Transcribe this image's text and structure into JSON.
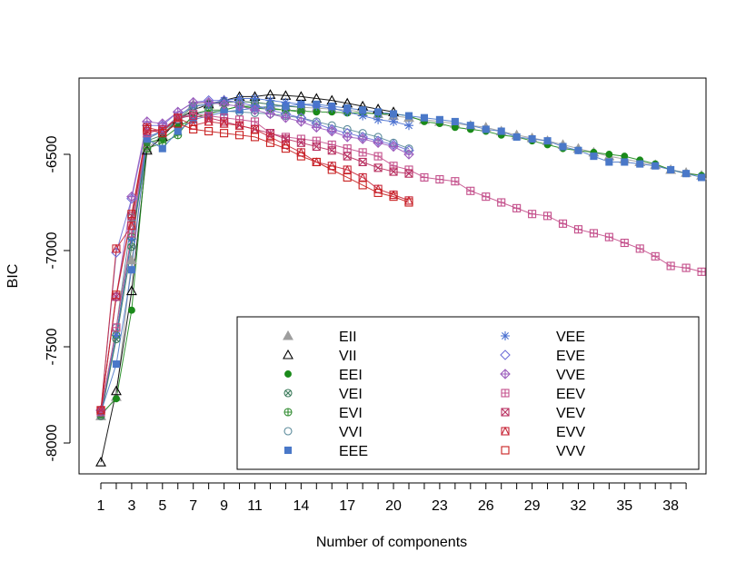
{
  "chart_data": {
    "type": "line",
    "title": "",
    "xlabel": "Number of components",
    "ylabel": "BIC",
    "xlim": [
      0,
      41.5
    ],
    "ylim": [
      -8120,
      -6120
    ],
    "xticks": [
      1,
      3,
      5,
      7,
      9,
      11,
      14,
      17,
      20,
      23,
      26,
      29,
      32,
      35,
      38
    ],
    "yticks": [
      -8000,
      -7500,
      -7000,
      -6500
    ],
    "grid": false,
    "legend": {
      "placement": "bottom-right",
      "columns": 2
    },
    "series": [
      {
        "name": "EII",
        "color": "#9e9e9e",
        "marker": "triangle-filled",
        "x": [
          1,
          2,
          3,
          4,
          5,
          6,
          7,
          8,
          9,
          10,
          11,
          12,
          13,
          14,
          15,
          16,
          17,
          18,
          19,
          20,
          21,
          22,
          23,
          24,
          25,
          26,
          27,
          28,
          29,
          30,
          31,
          32,
          33,
          34,
          35,
          36,
          37,
          38,
          39,
          40
        ],
        "values": [
          -7860,
          -7760,
          -7050,
          -6470,
          -6400,
          -6310,
          -6240,
          -6230,
          -6230,
          -6225,
          -6230,
          -6240,
          -6250,
          -6255,
          -6260,
          -6265,
          -6270,
          -6280,
          -6290,
          -6300,
          -6310,
          -6320,
          -6330,
          -6340,
          -6350,
          -6360,
          -6380,
          -6400,
          -6415,
          -6430,
          -6450,
          -6470,
          -6490,
          -6510,
          -6525,
          -6540,
          -6555,
          -6580,
          -6595,
          -6610
        ]
      },
      {
        "name": "VII",
        "color": "#000000",
        "marker": "triangle-open",
        "x": [
          1,
          2,
          3,
          4,
          5,
          6,
          7,
          8,
          9,
          10,
          11,
          12,
          13,
          14,
          15,
          16,
          17,
          18,
          19,
          20
        ],
        "values": [
          -8100,
          -7730,
          -7210,
          -6480,
          -6410,
          -6320,
          -6270,
          -6240,
          -6220,
          -6200,
          -6200,
          -6190,
          -6195,
          -6200,
          -6210,
          -6220,
          -6235,
          -6250,
          -6265,
          -6280
        ]
      },
      {
        "name": "EEI",
        "color": "#1a8a1a",
        "marker": "circle-filled",
        "x": [
          1,
          2,
          3,
          4,
          5,
          6,
          7,
          8,
          9,
          10,
          11,
          12,
          13,
          14,
          15,
          16,
          17,
          18,
          19,
          20,
          21,
          22,
          23,
          24,
          25,
          26,
          27,
          28,
          29,
          30,
          31,
          32,
          33,
          34,
          35,
          36,
          37,
          38,
          39,
          40
        ],
        "values": [
          -7850,
          -7770,
          -7310,
          -6440,
          -6420,
          -6360,
          -6310,
          -6290,
          -6270,
          -6250,
          -6260,
          -6265,
          -6270,
          -6275,
          -6280,
          -6280,
          -6285,
          -6285,
          -6290,
          -6290,
          -6300,
          -6330,
          -6340,
          -6360,
          -6370,
          -6380,
          -6400,
          -6410,
          -6430,
          -6450,
          -6470,
          -6480,
          -6490,
          -6500,
          -6510,
          -6530,
          -6550,
          -6580,
          -6600,
          -6610
        ]
      },
      {
        "name": "VEI",
        "color": "#3a7a5a",
        "marker": "circle-x",
        "x": [
          1,
          2,
          3,
          4,
          5,
          6,
          7,
          8,
          9,
          10,
          11,
          12,
          13,
          14
        ],
        "values": [
          -7860,
          -7460,
          -6980,
          -6430,
          -6400,
          -6320,
          -6250,
          -6240,
          -6230,
          -6225,
          -6230,
          -6240,
          -6250,
          -6255
        ]
      },
      {
        "name": "EVI",
        "color": "#2e8b2e",
        "marker": "circle-plus",
        "x": [
          1,
          2,
          3,
          4,
          5,
          6,
          7,
          8,
          9,
          10,
          11,
          12,
          13,
          14
        ],
        "values": [
          -7850,
          -7440,
          -6930,
          -6470,
          -6440,
          -6400,
          -6290,
          -6270,
          -6270,
          -6250,
          -6250,
          -6260,
          -6270,
          -6280
        ]
      },
      {
        "name": "VVI",
        "color": "#5a8a9a",
        "marker": "circle-open",
        "x": [
          1,
          2,
          3,
          4,
          5,
          6,
          7,
          8,
          9,
          10,
          11,
          12,
          13,
          14,
          15,
          16,
          17,
          18,
          19,
          20,
          21
        ],
        "values": [
          -7840,
          -7400,
          -6830,
          -6420,
          -6380,
          -6320,
          -6290,
          -6280,
          -6275,
          -6280,
          -6285,
          -6290,
          -6300,
          -6310,
          -6330,
          -6350,
          -6370,
          -6390,
          -6410,
          -6440,
          -6470
        ]
      },
      {
        "name": "EEE",
        "color": "#4a78c8",
        "marker": "square-filled",
        "x": [
          1,
          2,
          3,
          4,
          5,
          6,
          7,
          8,
          9,
          10,
          11,
          12,
          13,
          14,
          15,
          16,
          17,
          18,
          19,
          20,
          21,
          22,
          23,
          24,
          25,
          26,
          27,
          28,
          29,
          30,
          31,
          32,
          33,
          34,
          35,
          36,
          37,
          38,
          39,
          40
        ],
        "values": [
          -7840,
          -7590,
          -7100,
          -6420,
          -6470,
          -6380,
          -6320,
          -6300,
          -6280,
          -6270,
          -6260,
          -6250,
          -6250,
          -6240,
          -6240,
          -6250,
          -6260,
          -6270,
          -6280,
          -6290,
          -6300,
          -6310,
          -6320,
          -6330,
          -6350,
          -6370,
          -6380,
          -6410,
          -6420,
          -6430,
          -6460,
          -6480,
          -6510,
          -6540,
          -6540,
          -6550,
          -6560,
          -6580,
          -6600,
          -6620
        ]
      },
      {
        "name": "VEE",
        "color": "#4a70d0",
        "marker": "asterisk",
        "x": [
          1,
          2,
          3,
          4,
          5,
          6,
          7,
          8,
          9,
          10,
          11,
          12,
          13,
          14,
          15,
          16,
          17,
          18,
          19,
          20,
          21
        ],
        "values": [
          -7840,
          -7440,
          -6940,
          -6410,
          -6380,
          -6300,
          -6250,
          -6240,
          -6220,
          -6210,
          -6210,
          -6220,
          -6230,
          -6240,
          -6250,
          -6260,
          -6280,
          -6300,
          -6320,
          -6330,
          -6350
        ]
      },
      {
        "name": "EVE",
        "color": "#6f6fd8",
        "marker": "diamond-open",
        "x": [
          1,
          2,
          3,
          4,
          5,
          6,
          7,
          8,
          9,
          10,
          11,
          12,
          13,
          14,
          15,
          16,
          17,
          18,
          19,
          20,
          21
        ],
        "values": [
          -7830,
          -7010,
          -6730,
          -6350,
          -6350,
          -6280,
          -6230,
          -6220,
          -6220,
          -6230,
          -6250,
          -6270,
          -6290,
          -6310,
          -6340,
          -6370,
          -6390,
          -6410,
          -6430,
          -6450,
          -6480
        ]
      },
      {
        "name": "VVE",
        "color": "#9c5cbc",
        "marker": "diamond-plus",
        "x": [
          1,
          2,
          3,
          4,
          5,
          6,
          7,
          8,
          9,
          10,
          11,
          12,
          13,
          14,
          15,
          16,
          17,
          18,
          19,
          20,
          21
        ],
        "values": [
          -7830,
          -7240,
          -6720,
          -6330,
          -6340,
          -6280,
          -6230,
          -6230,
          -6240,
          -6250,
          -6270,
          -6290,
          -6310,
          -6330,
          -6360,
          -6380,
          -6410,
          -6420,
          -6440,
          -6460,
          -6500
        ]
      },
      {
        "name": "EEV",
        "color": "#c4508c",
        "marker": "square-plus",
        "x": [
          1,
          2,
          3,
          4,
          5,
          6,
          7,
          8,
          9,
          10,
          11,
          12,
          13,
          14,
          15,
          16,
          17,
          18,
          19,
          20,
          21,
          22,
          23,
          24,
          25,
          26,
          27,
          28,
          29,
          30,
          31,
          32,
          33,
          34,
          35,
          36,
          37,
          38,
          39,
          40
        ],
        "values": [
          -7840,
          -7400,
          -6910,
          -6390,
          -6370,
          -6310,
          -6290,
          -6300,
          -6310,
          -6320,
          -6330,
          -6390,
          -6410,
          -6420,
          -6430,
          -6450,
          -6470,
          -6490,
          -6510,
          -6560,
          -6580,
          -6620,
          -6630,
          -6640,
          -6690,
          -6720,
          -6750,
          -6780,
          -6810,
          -6820,
          -6860,
          -6890,
          -6910,
          -6930,
          -6960,
          -6990,
          -7030,
          -7080,
          -7090,
          -7110
        ]
      },
      {
        "name": "VEV",
        "color": "#b83060",
        "marker": "square-x",
        "x": [
          1,
          2,
          3,
          4,
          5,
          6,
          7,
          8,
          9,
          10,
          11,
          12,
          13,
          14,
          15,
          16,
          17,
          18,
          19,
          20,
          21
        ],
        "values": [
          -7830,
          -7240,
          -6820,
          -6380,
          -6370,
          -6310,
          -6300,
          -6310,
          -6330,
          -6350,
          -6370,
          -6390,
          -6420,
          -6440,
          -6460,
          -6480,
          -6510,
          -6540,
          -6570,
          -6590,
          -6600
        ]
      },
      {
        "name": "EVV",
        "color": "#c8283a",
        "marker": "square-triangle",
        "x": [
          1,
          2,
          3,
          4,
          5,
          6,
          7,
          8,
          9,
          10,
          11,
          12,
          13,
          14,
          15,
          16,
          17,
          18,
          19,
          20,
          21
        ],
        "values": [
          -7830,
          -6990,
          -6870,
          -6360,
          -6380,
          -6310,
          -6350,
          -6330,
          -6340,
          -6350,
          -6370,
          -6410,
          -6450,
          -6490,
          -6540,
          -6560,
          -6580,
          -6620,
          -6680,
          -6710,
          -6740
        ]
      },
      {
        "name": "VVV",
        "color": "#c81e1e",
        "marker": "square-open",
        "x": [
          1,
          2,
          3,
          4,
          5,
          6,
          7,
          8,
          9,
          10,
          11,
          12,
          13,
          14,
          15,
          16,
          17,
          18,
          19,
          20,
          21
        ],
        "values": [
          -7830,
          -7230,
          -6810,
          -6370,
          -6390,
          -6340,
          -6370,
          -6380,
          -6390,
          -6400,
          -6410,
          -6440,
          -6470,
          -6510,
          -6540,
          -6580,
          -6620,
          -6660,
          -6700,
          -6720,
          -6750
        ]
      }
    ]
  }
}
